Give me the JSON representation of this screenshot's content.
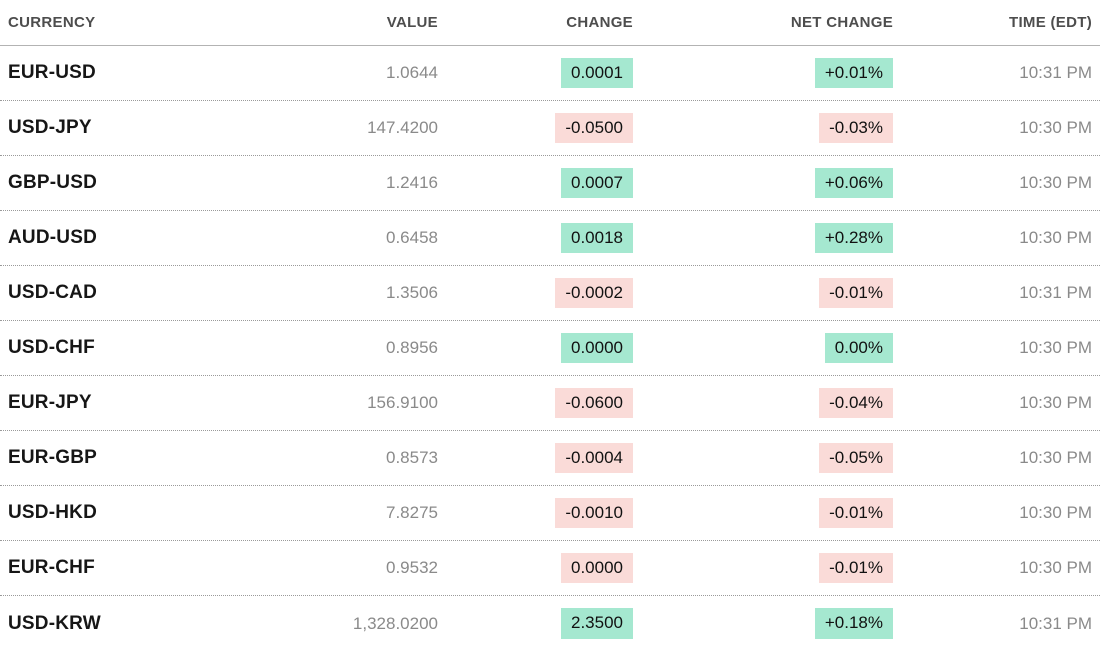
{
  "table": {
    "columns": [
      "CURRENCY",
      "VALUE",
      "CHANGE",
      "NET CHANGE",
      "TIME (EDT)"
    ],
    "rows": [
      {
        "pair": "EUR-USD",
        "value": "1.0644",
        "change": "0.0001",
        "net_change": "+0.01%",
        "time": "10:31 PM",
        "tone": "up"
      },
      {
        "pair": "USD-JPY",
        "value": "147.4200",
        "change": "-0.0500",
        "net_change": "-0.03%",
        "time": "10:30 PM",
        "tone": "down"
      },
      {
        "pair": "GBP-USD",
        "value": "1.2416",
        "change": "0.0007",
        "net_change": "+0.06%",
        "time": "10:30 PM",
        "tone": "up"
      },
      {
        "pair": "AUD-USD",
        "value": "0.6458",
        "change": "0.0018",
        "net_change": "+0.28%",
        "time": "10:30 PM",
        "tone": "up"
      },
      {
        "pair": "USD-CAD",
        "value": "1.3506",
        "change": "-0.0002",
        "net_change": "-0.01%",
        "time": "10:31 PM",
        "tone": "down"
      },
      {
        "pair": "USD-CHF",
        "value": "0.8956",
        "change": "0.0000",
        "net_change": "0.00%",
        "time": "10:30 PM",
        "tone": "up"
      },
      {
        "pair": "EUR-JPY",
        "value": "156.9100",
        "change": "-0.0600",
        "net_change": "-0.04%",
        "time": "10:30 PM",
        "tone": "down"
      },
      {
        "pair": "EUR-GBP",
        "value": "0.8573",
        "change": "-0.0004",
        "net_change": "-0.05%",
        "time": "10:30 PM",
        "tone": "down"
      },
      {
        "pair": "USD-HKD",
        "value": "7.8275",
        "change": "-0.0010",
        "net_change": "-0.01%",
        "time": "10:30 PM",
        "tone": "down"
      },
      {
        "pair": "EUR-CHF",
        "value": "0.9532",
        "change": "0.0000",
        "net_change": "-0.01%",
        "time": "10:30 PM",
        "tone": "down"
      },
      {
        "pair": "USD-KRW",
        "value": "1,328.0200",
        "change": "2.3500",
        "net_change": "+0.18%",
        "time": "10:31 PM",
        "tone": "up"
      }
    ],
    "colors": {
      "up_bg": "#a5e8d0",
      "down_bg": "#fadbd8"
    }
  }
}
